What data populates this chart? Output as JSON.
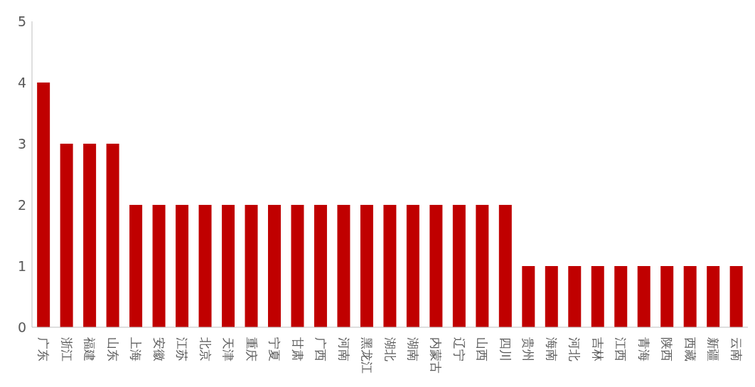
{
  "chart_data": {
    "type": "bar",
    "categories": [
      "广东",
      "浙江",
      "福建",
      "山东",
      "上海",
      "安徽",
      "江苏",
      "北京",
      "天津",
      "重庆",
      "宁夏",
      "甘肃",
      "广西",
      "河南",
      "黑龙江",
      "湖北",
      "湖南",
      "内蒙古",
      "辽宁",
      "山西",
      "四川",
      "贵州",
      "海南",
      "河北",
      "吉林",
      "江西",
      "青海",
      "陕西",
      "西藏",
      "新疆",
      "云南"
    ],
    "values": [
      4,
      3,
      3,
      3,
      2,
      2,
      2,
      2,
      2,
      2,
      2,
      2,
      2,
      2,
      2,
      2,
      2,
      2,
      2,
      2,
      2,
      1,
      1,
      1,
      1,
      1,
      1,
      1,
      1,
      1,
      1
    ],
    "color": "#c00000",
    "ylim": [
      0,
      5
    ],
    "yticks": [
      0,
      1,
      2,
      3,
      4,
      5
    ],
    "grid": false
  }
}
